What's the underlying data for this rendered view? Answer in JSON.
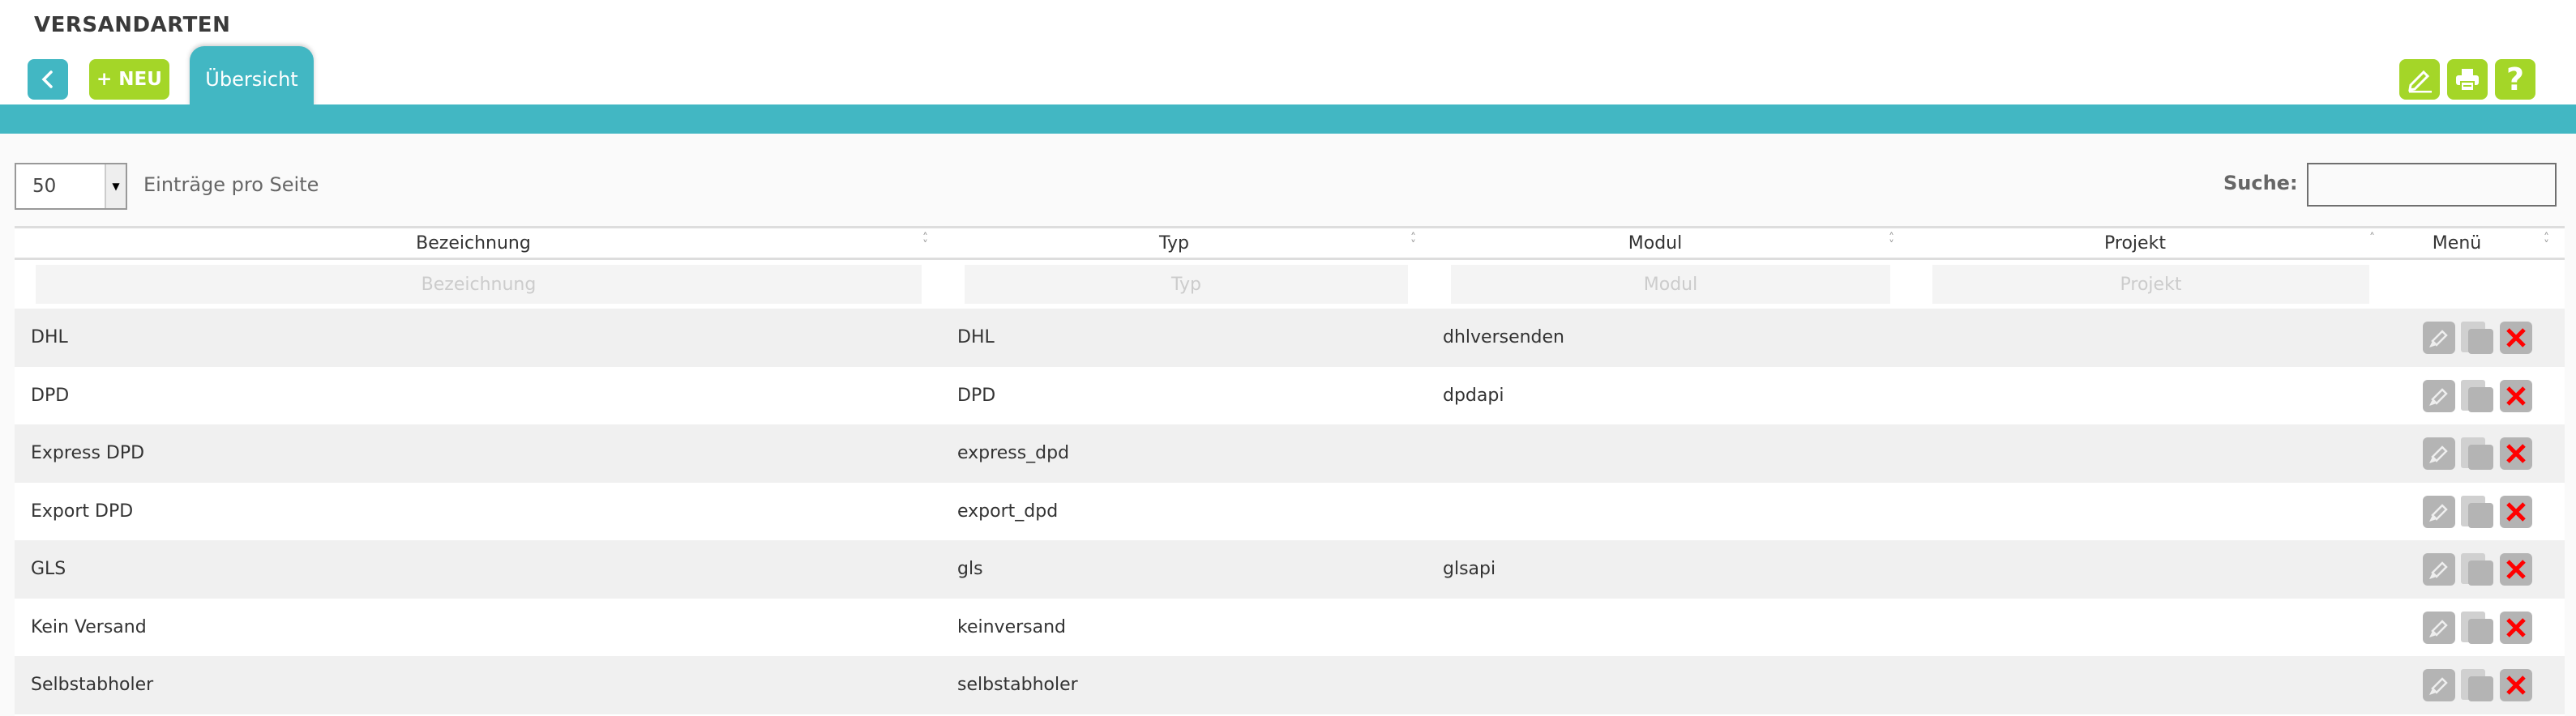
{
  "header": {
    "title": "VERSANDARTEN",
    "back_icon": "chevron-left-icon",
    "new_label": "+ NEU",
    "tab_label": "Übersicht",
    "toolbar": [
      {
        "name": "edit-icon"
      },
      {
        "name": "print-icon"
      },
      {
        "name": "help-icon",
        "label": "?"
      }
    ]
  },
  "colors": {
    "teal": "#42b7c3",
    "green": "#a4d628",
    "delete_red": "#ff0000"
  },
  "controls": {
    "page_size": "50",
    "page_size_label": "Einträge pro Seite",
    "search_label": "Suche:",
    "search_value": ""
  },
  "table": {
    "columns": [
      "Bezeichnung",
      "Typ",
      "Modul",
      "Projekt",
      "Menü"
    ],
    "filters": [
      "Bezeichnung",
      "Typ",
      "Modul",
      "Projekt"
    ],
    "rows": [
      {
        "bezeichnung": "DHL",
        "typ": "DHL",
        "modul": "dhlversenden",
        "projekt": ""
      },
      {
        "bezeichnung": "DPD",
        "typ": "DPD",
        "modul": "dpdapi",
        "projekt": ""
      },
      {
        "bezeichnung": "Express DPD",
        "typ": "express_dpd",
        "modul": "",
        "projekt": ""
      },
      {
        "bezeichnung": "Export DPD",
        "typ": "export_dpd",
        "modul": "",
        "projekt": ""
      },
      {
        "bezeichnung": "GLS",
        "typ": "gls",
        "modul": "glsapi",
        "projekt": ""
      },
      {
        "bezeichnung": "Kein Versand",
        "typ": "keinversand",
        "modul": "",
        "projekt": ""
      },
      {
        "bezeichnung": "Selbstabholer",
        "typ": "selbstabholer",
        "modul": "",
        "projekt": ""
      }
    ],
    "row_actions": [
      "edit-icon",
      "copy-icon",
      "delete-icon"
    ]
  }
}
